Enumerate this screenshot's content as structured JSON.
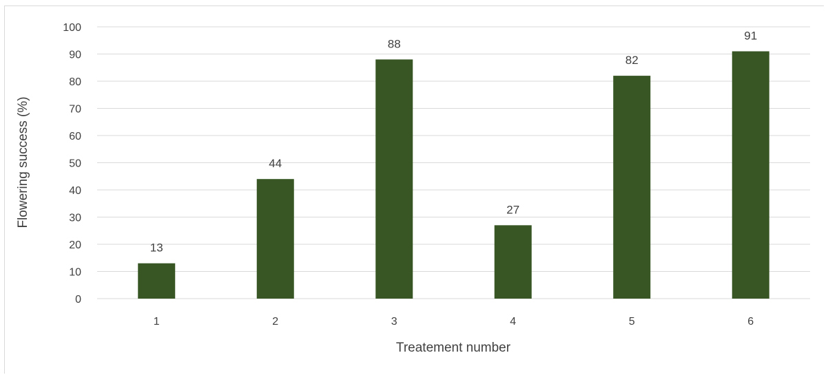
{
  "chart_data": {
    "type": "bar",
    "title": "",
    "categories": [
      "1",
      "2",
      "3",
      "4",
      "5",
      "6"
    ],
    "values": [
      13,
      44,
      88,
      27,
      82,
      91
    ],
    "data_labels": [
      "13",
      "44",
      "88",
      "27",
      "82",
      "91"
    ],
    "xlabel": "Treatement number",
    "ylabel": "Flowering success (%)",
    "ylim": [
      0,
      100
    ],
    "yticks": [
      "0",
      "10",
      "20",
      "30",
      "40",
      "50",
      "60",
      "70",
      "80",
      "90",
      "100"
    ],
    "grid": "horizontal",
    "legend": "none",
    "bar_color": "#375623",
    "grid_color": "#d9d9d9",
    "text_color": "#404040"
  }
}
